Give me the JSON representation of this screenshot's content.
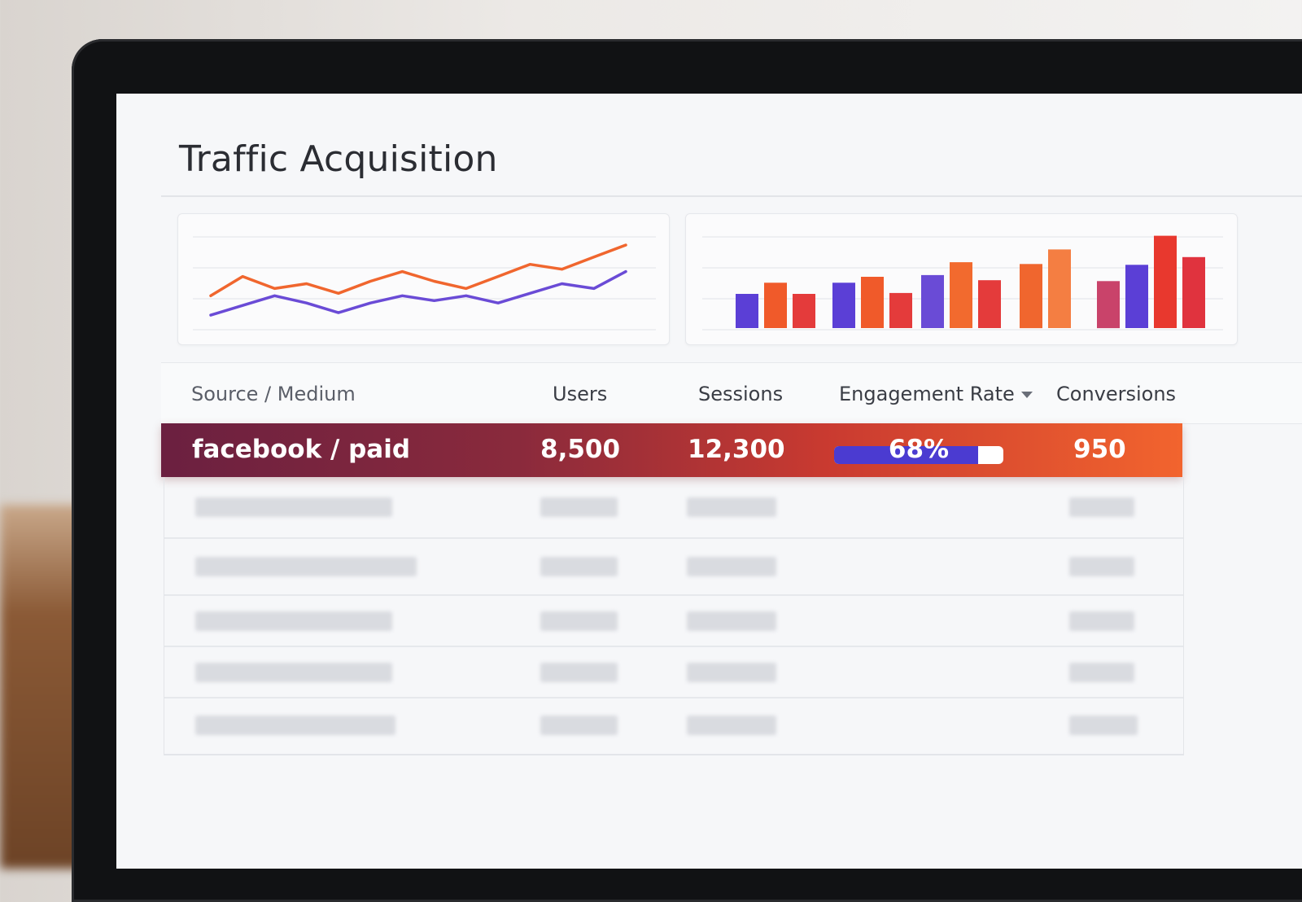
{
  "page": {
    "title": "Traffic Acquisition"
  },
  "charts": {
    "line": {
      "series": [
        {
          "color": "#f0662e",
          "values": [
            10,
            18,
            13,
            15,
            11,
            16,
            20,
            16,
            13,
            18,
            23,
            21,
            26,
            31
          ]
        },
        {
          "color": "#6a4bd6",
          "values": [
            2,
            6,
            10,
            7,
            3,
            7,
            10,
            8,
            10,
            7,
            11,
            15,
            13,
            20
          ]
        }
      ]
    },
    "bar": {
      "bars": [
        {
          "value": 40,
          "color": "#5b3fd6"
        },
        {
          "value": 53,
          "color": "#f05a2a"
        },
        {
          "value": 40,
          "color": "#e43b3b"
        },
        {
          "value": 53,
          "color": "#5b3fd6"
        },
        {
          "value": 60,
          "color": "#f05a2a"
        },
        {
          "value": 41,
          "color": "#e43b3b"
        },
        {
          "value": 62,
          "color": "#6a4bd6"
        },
        {
          "value": 77,
          "color": "#f26a2e"
        },
        {
          "value": 56,
          "color": "#e43b3b"
        },
        {
          "value": 75,
          "color": "#f0662e"
        },
        {
          "value": 92,
          "color": "#f47e42"
        },
        {
          "value": 55,
          "color": "#c9436a"
        },
        {
          "value": 74,
          "color": "#5b3fd6"
        },
        {
          "value": 108,
          "color": "#e8382e"
        },
        {
          "value": 83,
          "color": "#e0333e"
        }
      ]
    }
  },
  "table": {
    "columns": {
      "source": "Source / Medium",
      "users": "Users",
      "sessions": "Sessions",
      "engagement": "Engagement Rate",
      "conversions": "Conversions"
    },
    "highlight_row": {
      "source": "facebook / paid",
      "users": "8,500",
      "sessions": "12,300",
      "engagement": "68%",
      "engagement_value": 0.85,
      "conversions": "950"
    }
  }
}
